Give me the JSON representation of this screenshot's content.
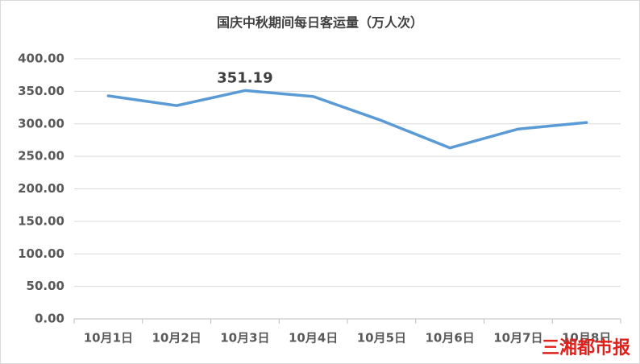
{
  "chart_data": {
    "type": "line",
    "title": "国庆中秋期间每日客运量（万人次）",
    "categories": [
      "10月1日",
      "10月2日",
      "10月3日",
      "10月4日",
      "10月5日",
      "10月6日",
      "10月7日",
      "10月8日"
    ],
    "series": [
      {
        "name": "每日客运量",
        "color": "#5b9bd5",
        "values": [
          343,
          328,
          351.19,
          342,
          305,
          263,
          292,
          302
        ],
        "value_labels": [
          null,
          null,
          "351.19",
          null,
          null,
          null,
          null,
          null
        ]
      }
    ],
    "ylim": [
      0,
      400
    ],
    "yticks": [
      {
        "value": 0,
        "label": "0.00"
      },
      {
        "value": 50,
        "label": "50.00"
      },
      {
        "value": 100,
        "label": "100.00"
      },
      {
        "value": 150,
        "label": "150.00"
      },
      {
        "value": 200,
        "label": "200.00"
      },
      {
        "value": 250,
        "label": "250.00"
      },
      {
        "value": 300,
        "label": "300.00"
      },
      {
        "value": 350,
        "label": "350.00"
      },
      {
        "value": 400,
        "label": "400.00"
      }
    ],
    "grid": true,
    "watermark": "三湘都市报"
  }
}
